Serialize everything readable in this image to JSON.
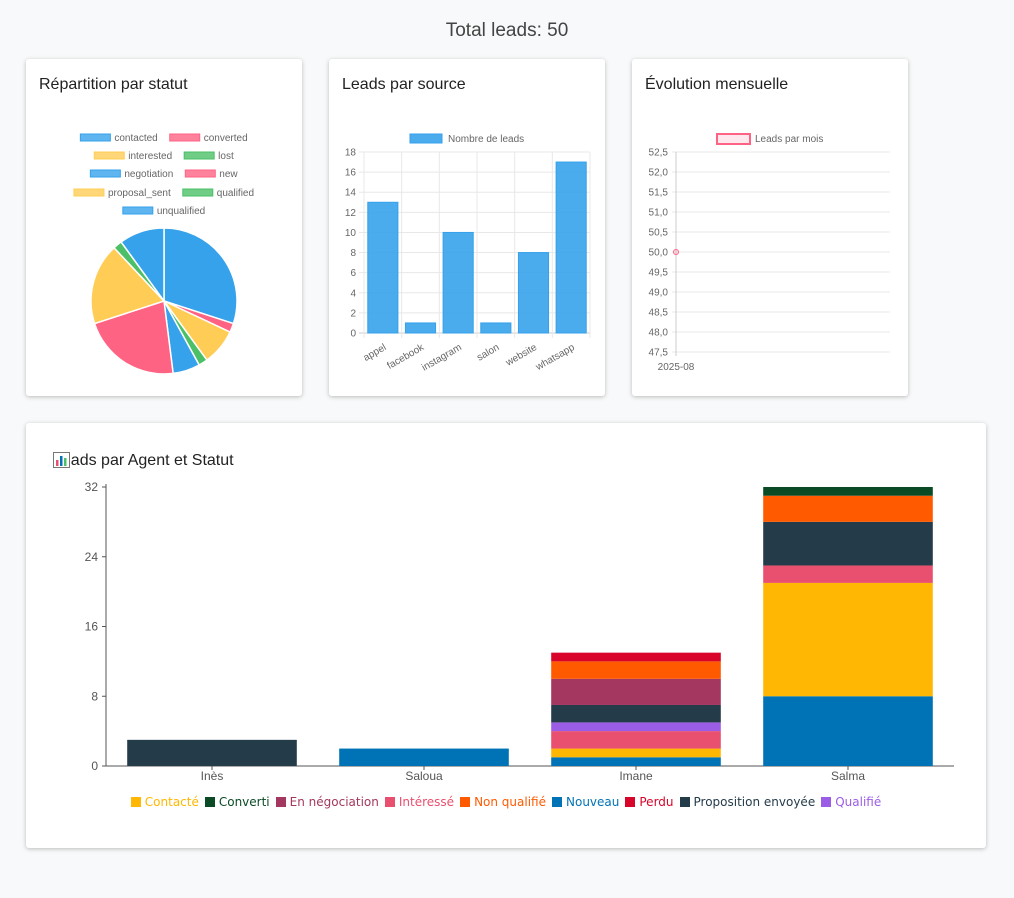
{
  "header": {
    "total_label": "Total leads: 50"
  },
  "colors": {
    "blue": "#36a2eb",
    "pink": "#ff6384",
    "yellow": "#ffcd56",
    "green": "#4bc066"
  },
  "cards": {
    "status": {
      "title": "Répartition par statut"
    },
    "source": {
      "title": "Leads par source"
    },
    "monthly": {
      "title": "Évolution mensuelle"
    },
    "agent": {
      "title": "Leads par Agent et Statut",
      "icon": "bar-chart-icon"
    }
  },
  "chart_data": [
    {
      "type": "pie",
      "labels": [
        "contacted",
        "converted",
        "interested",
        "lost",
        "negotiation",
        "new",
        "proposal_sent",
        "qualified",
        "unqualified"
      ],
      "values": [
        15,
        1,
        4,
        1,
        3,
        11,
        9,
        1,
        5
      ],
      "colors": [
        "#36a2eb",
        "#ff6384",
        "#ffcd56",
        "#4bc066",
        "#36a2eb",
        "#ff6384",
        "#ffcd56",
        "#4bc066",
        "#36a2eb"
      ]
    },
    {
      "type": "bar",
      "categories": [
        "appel",
        "facebook",
        "instagram",
        "salon",
        "website",
        "whatsapp"
      ],
      "series": [
        {
          "name": "Nombre de leads",
          "values": [
            13,
            1,
            10,
            1,
            8,
            17
          ]
        }
      ],
      "ylim": [
        0,
        18
      ],
      "yticks": [
        "0",
        "2",
        "4",
        "6",
        "8",
        "10",
        "12",
        "14",
        "16",
        "18"
      ],
      "grid": true
    },
    {
      "type": "line",
      "x": [
        "2025-08"
      ],
      "series": [
        {
          "name": "Leads par mois",
          "values": [
            50
          ]
        }
      ],
      "ylim": [
        47.5,
        52.5
      ],
      "yticks": [
        "47,5",
        "48,0",
        "48,5",
        "49,0",
        "49,5",
        "50,0",
        "50,5",
        "51,0",
        "51,5",
        "52,0",
        "52,5"
      ],
      "grid": true
    },
    {
      "type": "bar",
      "stacked": true,
      "categories": [
        "Inès",
        "Saloua",
        "Imane",
        "Salma"
      ],
      "ylim": [
        0,
        32
      ],
      "yticks": [
        "0",
        "8",
        "16",
        "24",
        "32"
      ],
      "series": [
        {
          "name": "Nouveau",
          "color": "#0073b7",
          "values": [
            0,
            2,
            1,
            8
          ]
        },
        {
          "name": "Contacté",
          "color": "#ffb703",
          "values": [
            0,
            0,
            1,
            13
          ]
        },
        {
          "name": "Intéressé",
          "color": "#e94f6e",
          "values": [
            0,
            0,
            2,
            2
          ]
        },
        {
          "name": "Qualifié",
          "color": "#9b5de5",
          "values": [
            0,
            0,
            1,
            0
          ]
        },
        {
          "name": "Proposition envoyée",
          "color": "#243b4a",
          "values": [
            3,
            0,
            2,
            5
          ]
        },
        {
          "name": "En négociation",
          "color": "#a4375f",
          "values": [
            0,
            0,
            3,
            0
          ]
        },
        {
          "name": "Non qualifié",
          "color": "#ff5a00",
          "values": [
            0,
            0,
            2,
            3
          ]
        },
        {
          "name": "Converti",
          "color": "#0a4a25",
          "values": [
            0,
            0,
            0,
            1
          ]
        },
        {
          "name": "Perdu",
          "color": "#d90429",
          "values": [
            0,
            0,
            1,
            0
          ]
        }
      ],
      "legend_order": [
        "Contacté",
        "Converti",
        "En négociation",
        "Intéressé",
        "Non qualifié",
        "Nouveau",
        "Perdu",
        "Proposition envoyée",
        "Qualifié"
      ]
    }
  ]
}
